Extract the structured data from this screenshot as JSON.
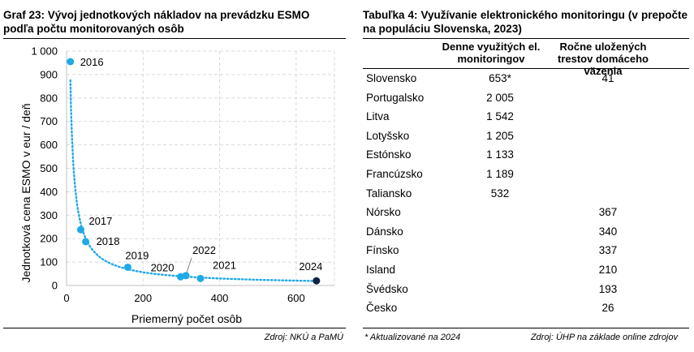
{
  "left": {
    "title": "Graf 23: Vývoj jednotkových nákladov na prevádzku ESMO podľa počtu monitorovaných osôb",
    "source": "Zdroj: NKÚ a PaMÚ"
  },
  "right": {
    "title": "Tabuľka 4: Využívanie elektronického monitoringu (v prepočte na populáciu Slovenska, 2023)",
    "col1_header": "Denne využitých el. monitoringov",
    "col2_header": "Ročne uložených trestov domáceho väzenia",
    "rows": [
      {
        "country": "Slovensko",
        "daily": "653*",
        "yearly": "41"
      },
      {
        "country": "Portugalsko",
        "daily": "2 005",
        "yearly": ""
      },
      {
        "country": "Litva",
        "daily": "1 542",
        "yearly": ""
      },
      {
        "country": "Lotyšsko",
        "daily": "1 205",
        "yearly": ""
      },
      {
        "country": "Estónsko",
        "daily": "1 133",
        "yearly": ""
      },
      {
        "country": "Francúzsko",
        "daily": "1 189",
        "yearly": ""
      },
      {
        "country": "Taliansko",
        "daily": "532",
        "yearly": ""
      },
      {
        "country": "Nórsko",
        "daily": "",
        "yearly": "367"
      },
      {
        "country": "Dánsko",
        "daily": "",
        "yearly": "340"
      },
      {
        "country": "Fínsko",
        "daily": "",
        "yearly": "337"
      },
      {
        "country": "Island",
        "daily": "",
        "yearly": "210"
      },
      {
        "country": "Švédsko",
        "daily": "",
        "yearly": "193"
      },
      {
        "country": "Česko",
        "daily": "",
        "yearly": "26"
      }
    ],
    "footnote": "* Aktualizované na 2024",
    "source": "Zdroj: ÚHP na základe online zdrojov"
  },
  "chart_data": {
    "type": "scatter",
    "xlabel": "Priemerný počet osôb",
    "ylabel": "Jednotková cena ESMO v eur / deň",
    "xlim": [
      0,
      700
    ],
    "ylim": [
      0,
      1000
    ],
    "x_ticks": [
      0,
      200,
      400,
      600
    ],
    "y_ticks": [
      0,
      100,
      200,
      300,
      400,
      500,
      600,
      700,
      800,
      900,
      1000
    ],
    "y_tick_labels": [
      "0",
      "100",
      "200",
      "300",
      "400",
      "500",
      "600",
      "700",
      "800",
      "900",
      "1 000"
    ],
    "grid": true,
    "points": [
      {
        "label": "2016",
        "x": 10,
        "y": 955
      },
      {
        "label": "2017",
        "x": 37,
        "y": 238
      },
      {
        "label": "2018",
        "x": 50,
        "y": 187
      },
      {
        "label": "2019",
        "x": 160,
        "y": 78
      },
      {
        "label": "2020",
        "x": 298,
        "y": 37
      },
      {
        "label": "2022",
        "x": 312,
        "y": 42
      },
      {
        "label": "2021",
        "x": 350,
        "y": 30
      },
      {
        "label": "2024",
        "x": 653,
        "y": 20
      }
    ],
    "trendline": {
      "style": "dotted",
      "x_start": 10,
      "x_end": 653
    },
    "colors": {
      "points": "#1fa9e6",
      "highlight": "#0b2447",
      "trendline": "#1fa9e6"
    }
  }
}
